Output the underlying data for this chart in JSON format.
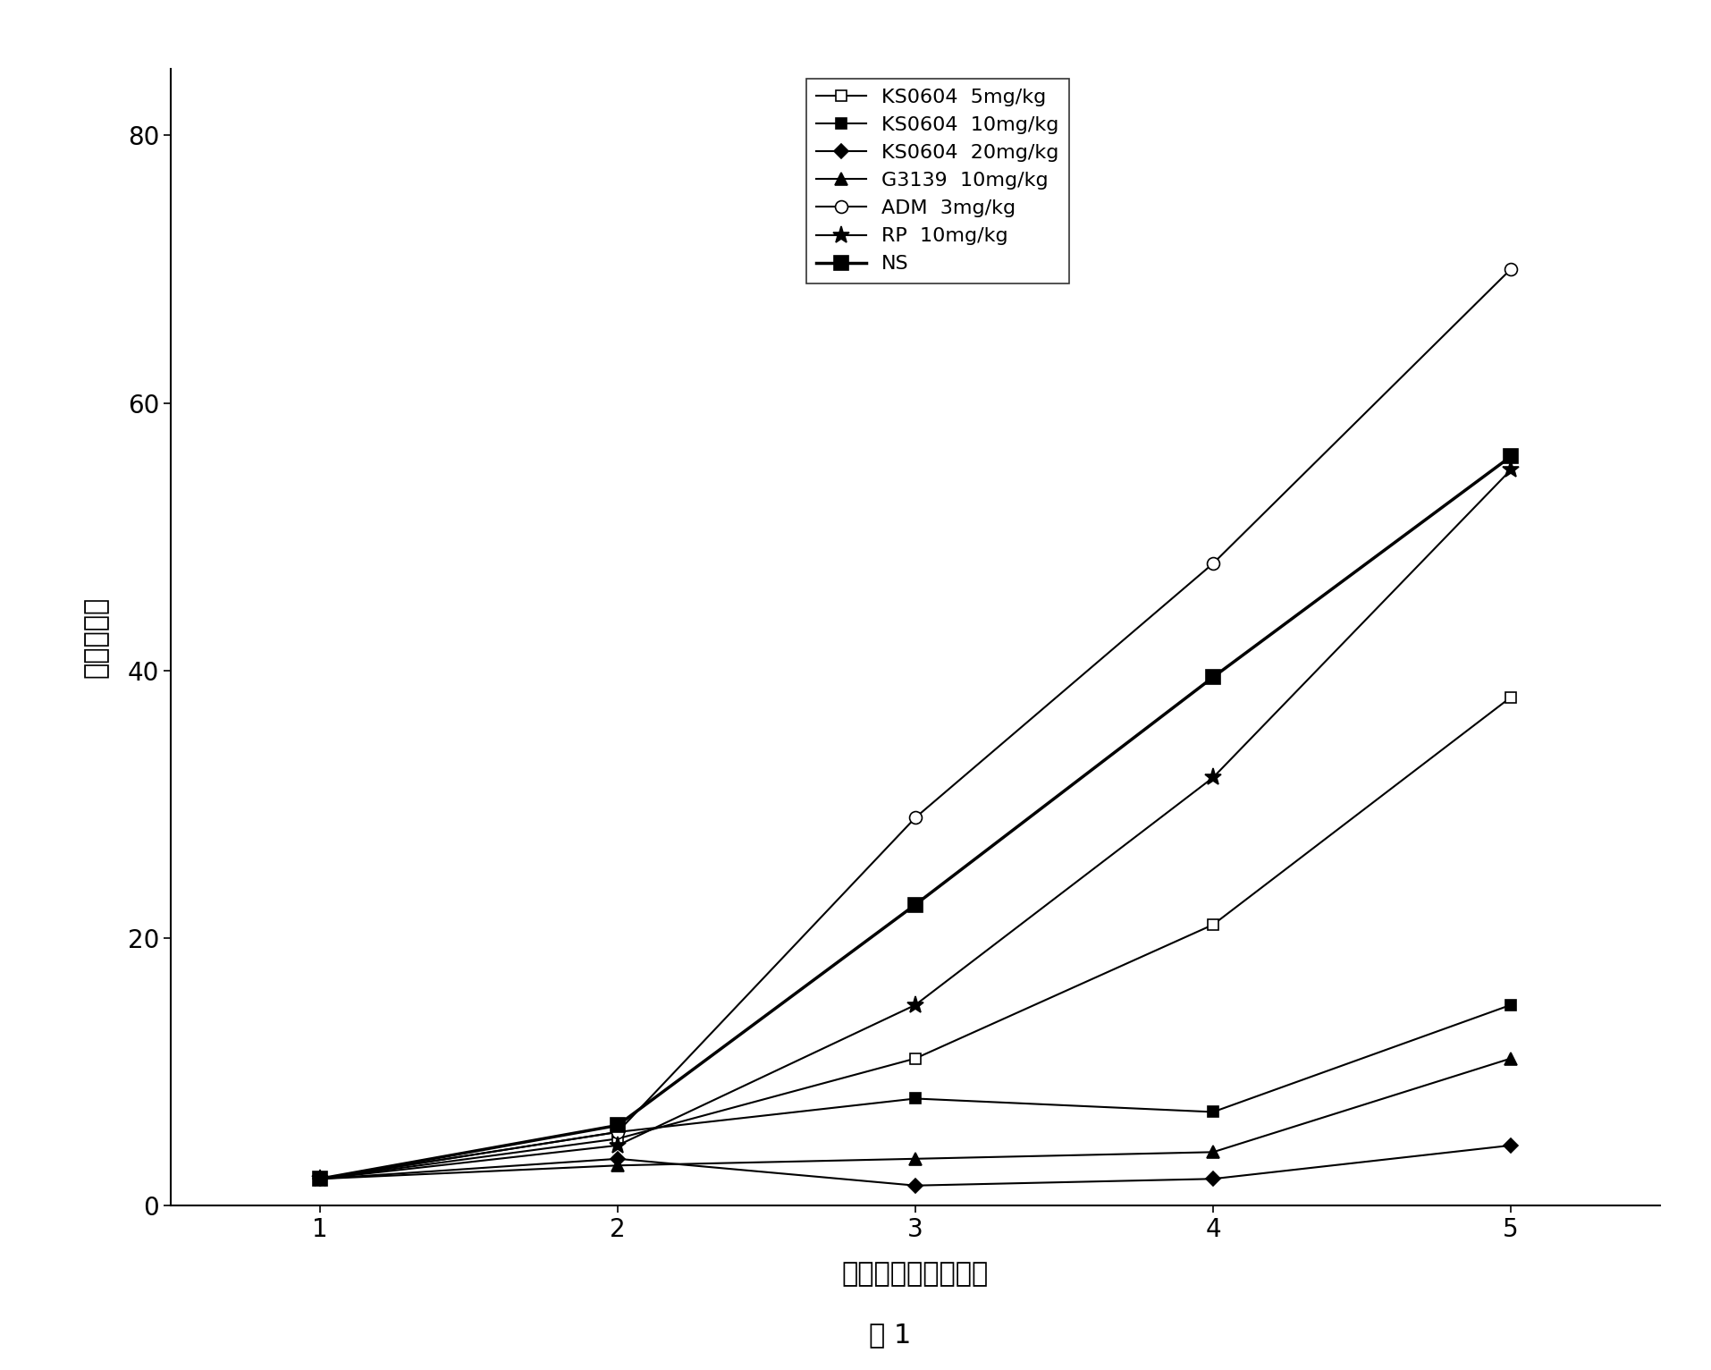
{
  "x": [
    1,
    2,
    3,
    4,
    5
  ],
  "series": [
    {
      "label": "KS0604  5mg/kg",
      "y": [
        2.0,
        5.0,
        11.0,
        21.0,
        38.0
      ],
      "color": "#000000",
      "marker": "s",
      "markersize": 9,
      "markerfacecolor": "white",
      "linestyle": "-",
      "linewidth": 1.5
    },
    {
      "label": "KS0604  10mg/kg",
      "y": [
        2.0,
        5.5,
        8.0,
        7.0,
        15.0
      ],
      "color": "#000000",
      "marker": "s",
      "markersize": 9,
      "markerfacecolor": "#000000",
      "linestyle": "-",
      "linewidth": 1.5
    },
    {
      "label": "KS0604  20mg/kg",
      "y": [
        2.0,
        3.5,
        1.5,
        2.0,
        4.5
      ],
      "color": "#000000",
      "marker": "D",
      "markersize": 8,
      "markerfacecolor": "#000000",
      "linestyle": "-",
      "linewidth": 1.5
    },
    {
      "label": "G3139  10mg/kg",
      "y": [
        2.0,
        3.0,
        3.5,
        4.0,
        11.0
      ],
      "color": "#000000",
      "marker": "^",
      "markersize": 10,
      "markerfacecolor": "#000000",
      "linestyle": "-",
      "linewidth": 1.5
    },
    {
      "label": "ADM  3mg/kg",
      "y": [
        2.0,
        5.5,
        29.0,
        48.0,
        70.0
      ],
      "color": "#000000",
      "marker": "o",
      "markersize": 10,
      "markerfacecolor": "white",
      "linestyle": "-",
      "linewidth": 1.5
    },
    {
      "label": "RP  10mg/kg",
      "y": [
        2.0,
        4.5,
        15.0,
        32.0,
        55.0
      ],
      "color": "#000000",
      "marker": "*",
      "markersize": 14,
      "markerfacecolor": "#000000",
      "linestyle": "-",
      "linewidth": 1.5
    },
    {
      "label": "NS",
      "y": [
        2.0,
        6.0,
        22.5,
        39.5,
        56.0
      ],
      "color": "#000000",
      "marker": "s",
      "markersize": 11,
      "markerfacecolor": "#000000",
      "linestyle": "-",
      "linewidth": 2.5
    }
  ],
  "xlabel": "检测点（时间顺序）",
  "ylabel": "相对睤体积",
  "xlim": [
    0.5,
    5.5
  ],
  "ylim": [
    0,
    85
  ],
  "yticks": [
    0,
    20,
    40,
    60,
    80
  ],
  "xticks": [
    1,
    2,
    3,
    4,
    5
  ],
  "caption": "图 1",
  "legend_fontsize": 16,
  "axis_fontsize": 22,
  "tick_fontsize": 20,
  "caption_fontsize": 22,
  "background_color": "#ffffff"
}
